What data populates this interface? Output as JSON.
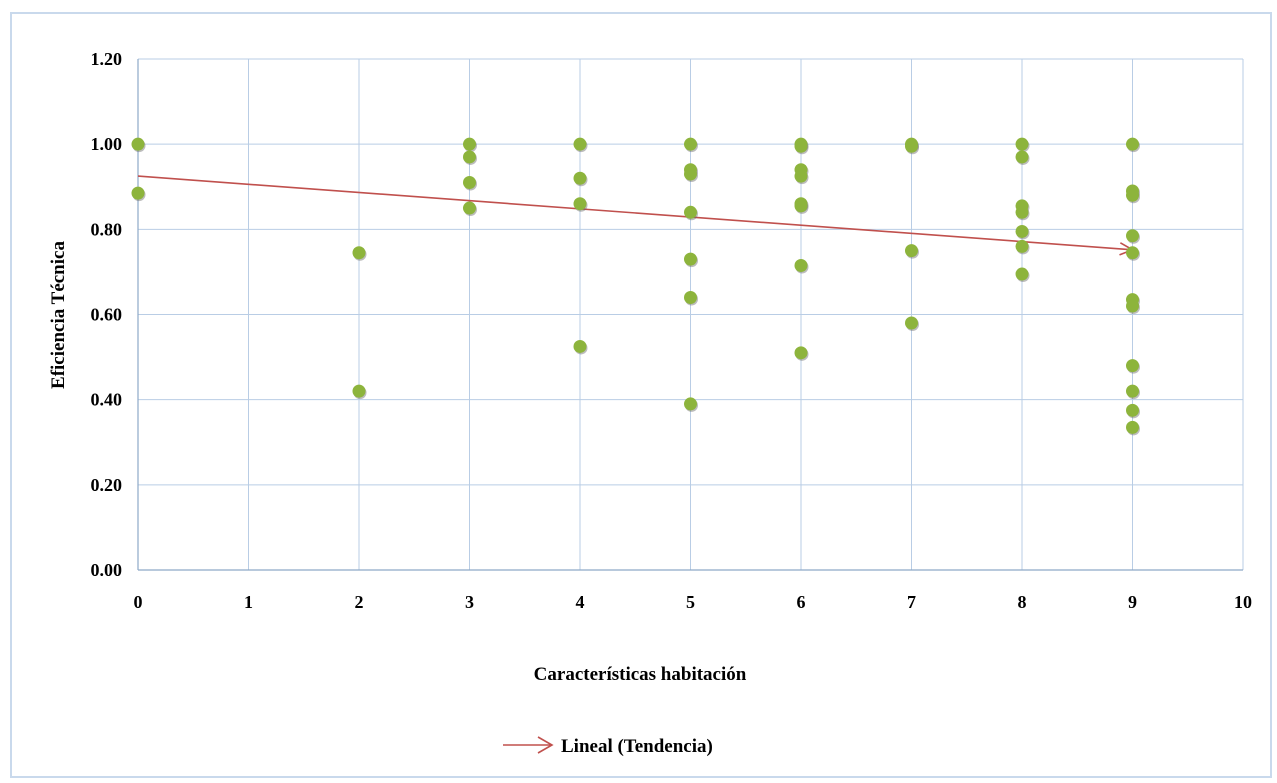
{
  "chart_data": {
    "type": "scatter",
    "xlabel": "Características habitación",
    "ylabel": "Eficiencia Técnica",
    "xlim": [
      0,
      10
    ],
    "ylim": [
      0,
      1.2
    ],
    "x_ticks": [
      "0",
      "1",
      "2",
      "3",
      "4",
      "5",
      "6",
      "7",
      "8",
      "9",
      "10"
    ],
    "y_ticks": [
      "0.00",
      "0.20",
      "0.40",
      "0.60",
      "0.80",
      "1.00",
      "1.20"
    ],
    "grid": true,
    "legend_position": "bottom",
    "point_color": "#8db43c",
    "points": [
      {
        "x": 0,
        "y": 1.0
      },
      {
        "x": 0,
        "y": 0.885
      },
      {
        "x": 2,
        "y": 0.745
      },
      {
        "x": 2,
        "y": 0.42
      },
      {
        "x": 3,
        "y": 1.0
      },
      {
        "x": 3,
        "y": 0.97
      },
      {
        "x": 3,
        "y": 0.91
      },
      {
        "x": 3,
        "y": 0.85
      },
      {
        "x": 4,
        "y": 1.0
      },
      {
        "x": 4,
        "y": 0.92
      },
      {
        "x": 4,
        "y": 0.86
      },
      {
        "x": 4,
        "y": 0.525
      },
      {
        "x": 5,
        "y": 1.0
      },
      {
        "x": 5,
        "y": 0.94
      },
      {
        "x": 5,
        "y": 0.93
      },
      {
        "x": 5,
        "y": 0.84
      },
      {
        "x": 5,
        "y": 0.73
      },
      {
        "x": 5,
        "y": 0.64
      },
      {
        "x": 5,
        "y": 0.39
      },
      {
        "x": 6,
        "y": 1.0
      },
      {
        "x": 6,
        "y": 0.995
      },
      {
        "x": 6,
        "y": 0.94
      },
      {
        "x": 6,
        "y": 0.925
      },
      {
        "x": 6,
        "y": 0.86
      },
      {
        "x": 6,
        "y": 0.855
      },
      {
        "x": 6,
        "y": 0.715
      },
      {
        "x": 6,
        "y": 0.51
      },
      {
        "x": 7,
        "y": 1.0
      },
      {
        "x": 7,
        "y": 0.995
      },
      {
        "x": 7,
        "y": 0.75
      },
      {
        "x": 7,
        "y": 0.58
      },
      {
        "x": 8,
        "y": 1.0
      },
      {
        "x": 8,
        "y": 0.97
      },
      {
        "x": 8,
        "y": 0.855
      },
      {
        "x": 8,
        "y": 0.84
      },
      {
        "x": 8,
        "y": 0.795
      },
      {
        "x": 8,
        "y": 0.76
      },
      {
        "x": 8,
        "y": 0.695
      },
      {
        "x": 9,
        "y": 1.0
      },
      {
        "x": 9,
        "y": 0.89
      },
      {
        "x": 9,
        "y": 0.88
      },
      {
        "x": 9,
        "y": 0.785
      },
      {
        "x": 9,
        "y": 0.745
      },
      {
        "x": 9,
        "y": 0.635
      },
      {
        "x": 9,
        "y": 0.62
      },
      {
        "x": 9,
        "y": 0.48
      },
      {
        "x": 9,
        "y": 0.42
      },
      {
        "x": 9,
        "y": 0.375
      },
      {
        "x": 9,
        "y": 0.335
      }
    ],
    "trendline": {
      "name": "Lineal (Tendencia)",
      "color": "#c0504d",
      "x": [
        0,
        9
      ],
      "y": [
        0.925,
        0.752
      ]
    }
  }
}
